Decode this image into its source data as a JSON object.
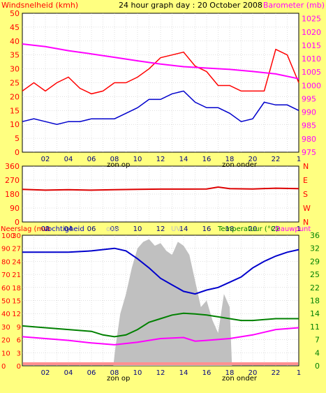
{
  "header": {
    "left_label": "Windsnelheid (kmh)",
    "title": "24 hour graph day : 20 October 2008",
    "right_label": "Barometer (mb)"
  },
  "footer": {
    "sunrise": "zon op",
    "sunset": "zon onder"
  },
  "panel3_labels": {
    "rain": "Neerslag (mm",
    "humidity": "Vochtigheid",
    "solar": "olar",
    "uv": "UV",
    "temperature": "Temperatuur (°C)",
    "dewpoint": "Dauwpunt"
  },
  "colors": {
    "background": "#ffff80",
    "plot_bg": "#ffffff",
    "gust": "#ff0000",
    "wind": "#0000cc",
    "barometer": "#ff00ff",
    "direction": "#dd0000",
    "humidity": "#0000cc",
    "temperature": "#008000",
    "dewpoint": "#ff00ff",
    "solar": "#c0c0c0",
    "left_axis": "#ff0000",
    "right_axis": "#ff00ff",
    "right_axis_temp": "#008000",
    "grid": "#c0c0c0"
  },
  "chart_data": [
    {
      "type": "line",
      "x_ticks": [
        "02",
        "04",
        "06",
        "08",
        "10",
        "12",
        "14",
        "16",
        "18",
        "20",
        "22",
        "1"
      ],
      "y_left_ticks": [
        0,
        5,
        10,
        15,
        20,
        25,
        30,
        35,
        40,
        45,
        50
      ],
      "y_right_ticks": [
        975,
        980,
        985,
        990,
        995,
        1000,
        1005,
        1010,
        1015,
        1020,
        1025
      ],
      "ylim_left": [
        0,
        50
      ],
      "ylim_right": [
        975,
        1027
      ],
      "xlim_hours": [
        0,
        24
      ],
      "series": [
        {
          "name": "Windsnelheid (kmh)",
          "axis": "left",
          "x": [
            0,
            1,
            2,
            3,
            4,
            5,
            6,
            7,
            8,
            9,
            10,
            11,
            12,
            13,
            14,
            15,
            16,
            17,
            18,
            19,
            20,
            21,
            22,
            23,
            24
          ],
          "values": [
            22,
            25,
            22,
            25,
            27,
            23,
            21,
            22,
            25,
            25,
            27,
            30,
            34,
            35,
            36,
            31,
            29,
            24,
            24,
            22,
            22,
            22,
            37,
            35,
            25
          ]
        },
        {
          "name": "Windsnelheid",
          "axis": "left",
          "x": [
            0,
            1,
            2,
            3,
            4,
            5,
            6,
            7,
            8,
            9,
            10,
            11,
            12,
            13,
            14,
            15,
            16,
            17,
            18,
            19,
            20,
            21,
            22,
            23,
            24
          ],
          "values": [
            11,
            12,
            11,
            10,
            11,
            11,
            12,
            12,
            12,
            14,
            16,
            19,
            19,
            21,
            22,
            18,
            16,
            16,
            14,
            11,
            12,
            18,
            17,
            17,
            15
          ]
        },
        {
          "name": "Barometer (mb)",
          "axis": "right",
          "x": [
            0,
            2,
            4,
            6,
            8,
            10,
            12,
            14,
            16,
            18,
            20,
            22,
            24
          ],
          "values": [
            1015.5,
            1014.5,
            1013,
            1011.8,
            1010.5,
            1009.2,
            1008,
            1007,
            1006.5,
            1006,
            1005.2,
            1004.3,
            1002.5
          ]
        }
      ]
    },
    {
      "type": "line",
      "y_left_ticks": [
        0,
        90,
        180,
        270,
        360
      ],
      "y_right_ticks": [
        "N",
        "W",
        "S",
        "E",
        "N"
      ],
      "ylim": [
        0,
        360
      ],
      "series": [
        {
          "name": "direction",
          "x": [
            0,
            2,
            4,
            6,
            8,
            10,
            12,
            14,
            16,
            17,
            18,
            20,
            22,
            24
          ],
          "values": [
            210,
            205,
            208,
            205,
            208,
            210,
            212,
            212,
            213,
            225,
            215,
            213,
            218,
            215
          ]
        }
      ]
    },
    {
      "type": "line",
      "y_left_ticks": [
        0,
        10,
        20,
        30,
        40,
        50,
        60,
        70,
        80,
        90,
        100
      ],
      "y_left2_ticks": [
        0,
        3,
        6,
        9,
        12,
        15,
        18,
        21,
        24,
        27,
        30
      ],
      "y_right_ticks": [
        0,
        4,
        7,
        11,
        14,
        18,
        22,
        25,
        29,
        32,
        36
      ],
      "ylim_humidity": [
        0,
        100
      ],
      "ylim_temperature": [
        0,
        36
      ],
      "series": [
        {
          "name": "Vochtigheid",
          "axis": "humidity",
          "x": [
            0,
            2,
            4,
            6,
            8,
            9,
            10,
            11,
            12,
            13,
            14,
            15,
            16,
            17,
            18,
            19,
            20,
            21,
            22,
            23,
            24
          ],
          "values": [
            87,
            87,
            87,
            88,
            90,
            88,
            82,
            75,
            67,
            62,
            57,
            55,
            58,
            60,
            64,
            68,
            75,
            80,
            84,
            87,
            89
          ]
        },
        {
          "name": "Temperatuur (°C)",
          "axis": "temperature",
          "x": [
            0,
            2,
            4,
            6,
            7,
            8,
            9,
            10,
            11,
            12,
            13,
            14,
            15,
            16,
            17,
            18,
            19,
            20,
            22,
            24
          ],
          "values": [
            11,
            10.5,
            10,
            9.5,
            8.5,
            8,
            8.5,
            10,
            12,
            13,
            14,
            14.5,
            14.3,
            14,
            13.5,
            13,
            12.5,
            12.5,
            13,
            13
          ]
        },
        {
          "name": "Dauwpunt",
          "axis": "temperature",
          "x": [
            0,
            2,
            4,
            6,
            8,
            10,
            12,
            14,
            15,
            16,
            18,
            20,
            22,
            24
          ],
          "values": [
            8,
            7.5,
            7,
            6.3,
            5.8,
            6.5,
            7.5,
            7.8,
            6.8,
            7,
            7.5,
            8.5,
            10,
            10.5
          ]
        },
        {
          "name": "Solar",
          "axis": "humidity",
          "x": [
            7.9,
            8.1,
            8.5,
            9,
            9.5,
            10,
            10.5,
            11,
            11.5,
            12,
            12.5,
            13,
            13.5,
            14,
            14.5,
            15,
            15.5,
            16,
            16.5,
            17,
            17.5,
            18,
            18.2
          ],
          "values": [
            0,
            15,
            40,
            55,
            75,
            90,
            95,
            97,
            92,
            94,
            88,
            85,
            95,
            92,
            85,
            65,
            45,
            50,
            35,
            25,
            55,
            45,
            0
          ]
        }
      ]
    }
  ]
}
